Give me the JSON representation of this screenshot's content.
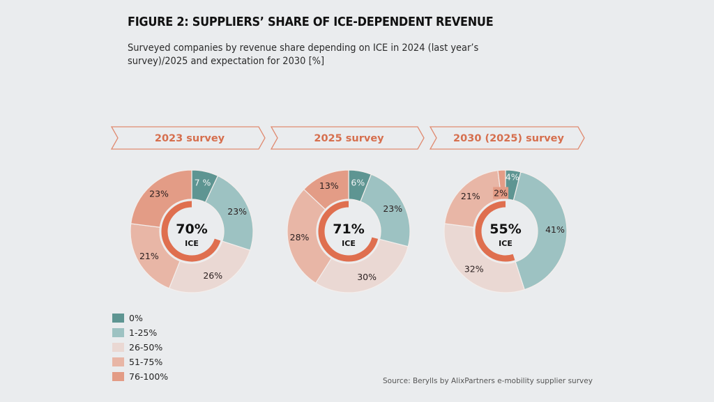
{
  "chart_data": {
    "type": "pie",
    "title": "FIGURE 2: SUPPLIERS’ SHARE OF ICE-DEPENDENT REVENUE",
    "subtitle": "Surveyed companies by revenue share depending on ICE in 2024 (last year’s survey)/2025 and expectation for 2030 [%]",
    "categories": [
      "0%",
      "1-25%",
      "26-50%",
      "51-75%",
      "76-100%"
    ],
    "colors": {
      "0%": "#5e9592",
      "1-25%": "#9dc2c2",
      "26-50%": "#ead8d3",
      "51-75%": "#e8b6a6",
      "76-100%": "#e39c86",
      "ice_arc": "#df6f4f",
      "banner": "#e08a70"
    },
    "series": [
      {
        "name": "2023 survey",
        "values": [
          7,
          23,
          26,
          21,
          23
        ],
        "labels": [
          "7 %",
          "23%",
          "26%",
          "21%",
          "23%"
        ],
        "ice_share": 70,
        "ice_label": "70%"
      },
      {
        "name": "2025 survey",
        "values": [
          6,
          23,
          30,
          28,
          13
        ],
        "labels": [
          "6%",
          "23%",
          "30%",
          "28%",
          "13%"
        ],
        "ice_share": 71,
        "ice_label": "71%"
      },
      {
        "name": "2030 (2025) survey",
        "values": [
          4,
          41,
          32,
          21,
          2
        ],
        "labels": [
          "4%",
          "41%",
          "32%",
          "21%",
          "2%"
        ],
        "ice_share": 55,
        "ice_label": "55%"
      }
    ],
    "center_caption": "ICE",
    "legend_position": "bottom-left",
    "source": "Source: Berylls by AlixPartners e-mobility supplier survey"
  },
  "legend": [
    {
      "label": "0%"
    },
    {
      "label": "1-25%"
    },
    {
      "label": "26-50%"
    },
    {
      "label": "51-75%"
    },
    {
      "label": "76-100%"
    }
  ]
}
